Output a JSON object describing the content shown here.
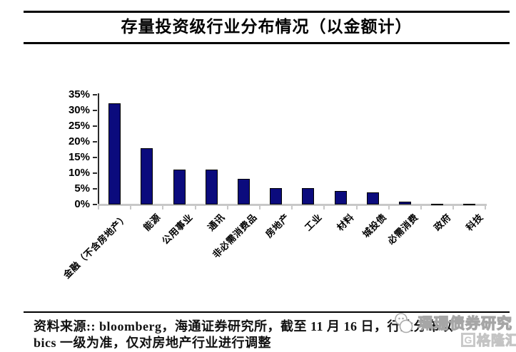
{
  "title": {
    "text": "存量投资级行业分布情况（以金额计）"
  },
  "chart_data": {
    "type": "bar",
    "title": "存量投资级行业分布情况（以金额计）",
    "categories": [
      "金融（不含房地产）",
      "能源",
      "公用事业",
      "通讯",
      "非必需消费品",
      "房地产",
      "工业",
      "材料",
      "城投债",
      "必需消费",
      "政府",
      "科技"
    ],
    "values": [
      32.3,
      18.0,
      11.2,
      11.2,
      8.2,
      5.3,
      5.2,
      4.4,
      3.8,
      0.8,
      0.3,
      0.3
    ],
    "unit": "%",
    "xlabel": "",
    "ylabel": "",
    "ylim": [
      0,
      35
    ],
    "ytick_step": 5,
    "ytick_labels": [
      "0%",
      "5%",
      "10%",
      "15%",
      "20%",
      "25%",
      "30%",
      "35%"
    ],
    "grid": false,
    "legend": false,
    "bar_color": "#0b0b7d",
    "bar_border_color": "#000000",
    "y_axis_color": "#2b2b2b",
    "x_axis_color": "#c8c8c8"
  },
  "footer": {
    "source_line1": "资料来源:: bloomberg，海通证券研究所，截至 11 月 16 日，行业分布以",
    "source_line2": "bics 一级为准，仅对房地产行业进行调整"
  },
  "watermark": {
    "brand_text": "珮珊债券研究",
    "logo_letter": "G",
    "logo_text": "格隆汇"
  }
}
